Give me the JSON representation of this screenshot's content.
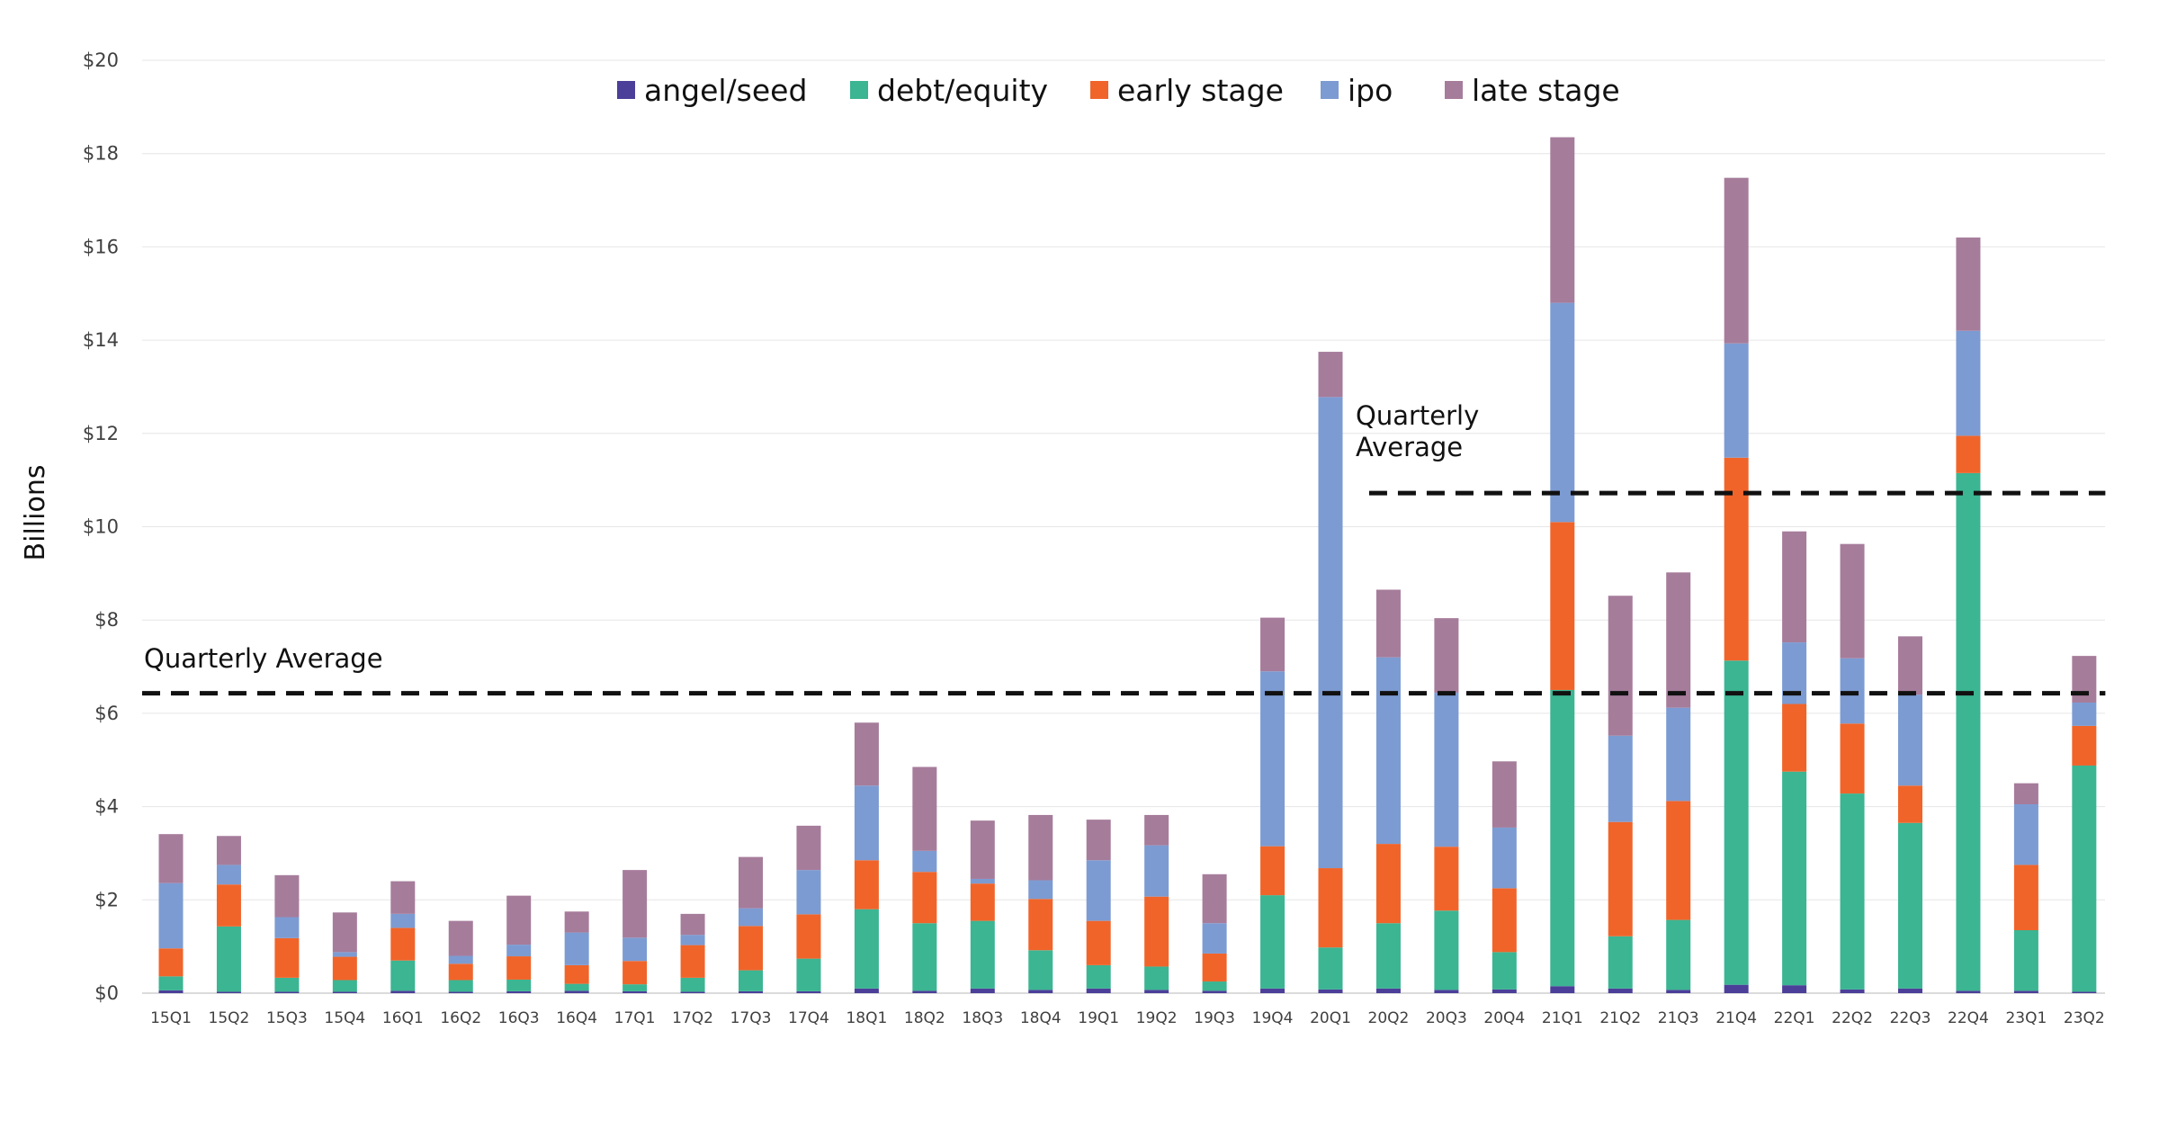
{
  "chart_data": {
    "type": "bar",
    "stacked": true,
    "title": "",
    "xlabel": "",
    "ylabel": "Billions",
    "ylim": [
      0,
      20
    ],
    "y_ticks": [
      0,
      2,
      4,
      6,
      8,
      10,
      12,
      14,
      16,
      18,
      20
    ],
    "y_tick_labels": [
      "$0",
      "$2",
      "$4",
      "$6",
      "$8",
      "$10",
      "$12",
      "$14",
      "$16",
      "$18",
      "$20"
    ],
    "grid": true,
    "legend_position": "top-center",
    "categories": [
      "15Q1",
      "15Q2",
      "15Q3",
      "15Q4",
      "16Q1",
      "16Q2",
      "16Q3",
      "16Q4",
      "17Q1",
      "17Q2",
      "17Q3",
      "17Q4",
      "18Q1",
      "18Q2",
      "18Q3",
      "18Q4",
      "19Q1",
      "19Q2",
      "19Q3",
      "19Q4",
      "20Q1",
      "20Q2",
      "20Q3",
      "20Q4",
      "21Q1",
      "21Q2",
      "21Q3",
      "21Q4",
      "22Q1",
      "22Q2",
      "22Q3",
      "22Q4",
      "23Q1",
      "23Q2"
    ],
    "series": [
      {
        "name": "angel/seed",
        "color": "#4b3f99",
        "values": [
          0.06,
          0.03,
          0.03,
          0.03,
          0.05,
          0.03,
          0.04,
          0.05,
          0.04,
          0.03,
          0.04,
          0.04,
          0.1,
          0.05,
          0.1,
          0.07,
          0.1,
          0.07,
          0.05,
          0.1,
          0.08,
          0.1,
          0.07,
          0.08,
          0.15,
          0.1,
          0.07,
          0.18,
          0.17,
          0.08,
          0.1,
          0.05,
          0.05,
          0.03
        ]
      },
      {
        "name": "debt/equity",
        "color": "#3bb592",
        "values": [
          0.3,
          1.4,
          0.3,
          0.25,
          0.65,
          0.25,
          0.25,
          0.15,
          0.15,
          0.3,
          0.45,
          0.7,
          1.7,
          1.45,
          1.45,
          0.85,
          0.5,
          0.5,
          0.2,
          2.0,
          0.9,
          1.4,
          1.7,
          0.8,
          6.35,
          1.12,
          1.5,
          6.95,
          4.58,
          4.2,
          3.55,
          11.1,
          1.3,
          4.85
        ]
      },
      {
        "name": "early stage",
        "color": "#f0642a",
        "values": [
          0.6,
          0.9,
          0.85,
          0.5,
          0.7,
          0.35,
          0.5,
          0.4,
          0.5,
          0.7,
          0.95,
          0.95,
          1.05,
          1.1,
          0.8,
          1.1,
          0.95,
          1.5,
          0.6,
          1.05,
          1.7,
          1.7,
          1.37,
          1.37,
          3.6,
          2.45,
          2.55,
          4.35,
          1.45,
          1.5,
          0.8,
          0.8,
          1.4,
          0.85
        ]
      },
      {
        "name": "ipo",
        "color": "#7c9bd2",
        "values": [
          1.4,
          0.42,
          0.45,
          0.1,
          0.3,
          0.17,
          0.25,
          0.7,
          0.5,
          0.22,
          0.38,
          0.95,
          1.6,
          0.45,
          0.1,
          0.4,
          1.3,
          1.1,
          0.65,
          3.75,
          10.1,
          4.0,
          3.3,
          1.3,
          4.7,
          1.85,
          2.0,
          2.45,
          1.32,
          1.4,
          1.95,
          2.25,
          1.3,
          0.5
        ]
      },
      {
        "name": "late stage",
        "color": "#a67c9b",
        "values": [
          1.05,
          0.62,
          0.9,
          0.85,
          0.7,
          0.75,
          1.05,
          0.45,
          1.45,
          0.45,
          1.1,
          0.95,
          1.35,
          1.8,
          1.25,
          1.4,
          0.87,
          0.65,
          1.05,
          1.15,
          0.97,
          1.45,
          1.6,
          1.42,
          3.55,
          3.0,
          2.9,
          3.55,
          2.38,
          2.45,
          1.25,
          2.0,
          0.45,
          1.0
        ]
      }
    ],
    "reference_lines": [
      {
        "label": "Quarterly Average",
        "value": 6.43,
        "from_category": "15Q1",
        "to_category": "23Q2"
      },
      {
        "label": "Quarterly Average",
        "value": 10.72,
        "from_category": "20Q2",
        "to_category": "23Q2"
      }
    ]
  },
  "annotations": {
    "avg1_label": "Quarterly Average",
    "avg2_label_line1": "Quarterly",
    "avg2_label_line2": "Average"
  }
}
